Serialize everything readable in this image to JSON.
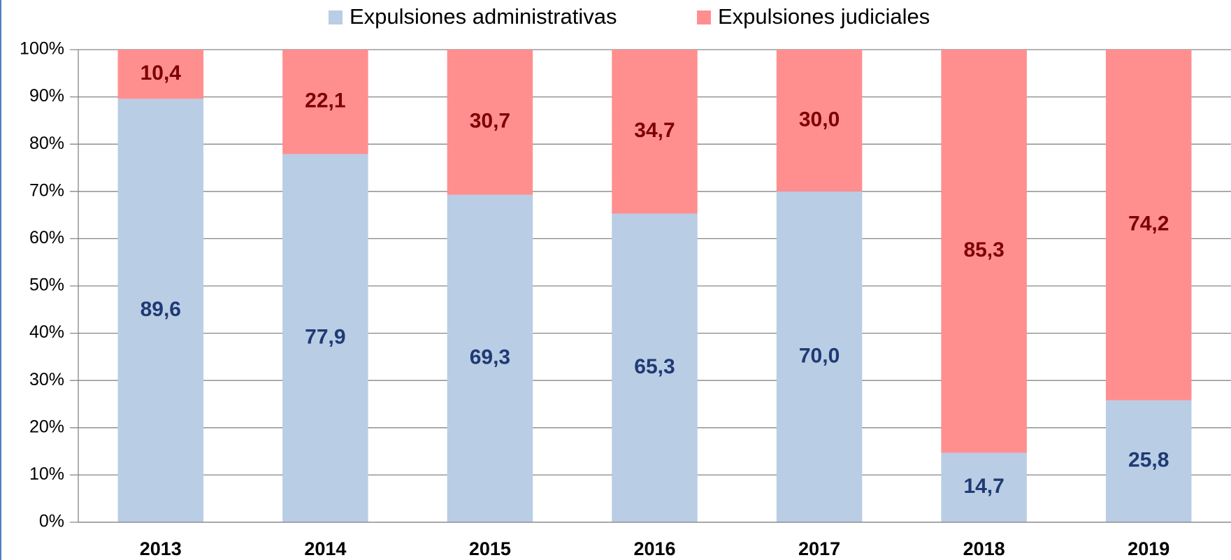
{
  "chart_data": {
    "type": "bar",
    "stacked": true,
    "categories": [
      "2013",
      "2014",
      "2015",
      "2016",
      "2017",
      "2018",
      "2019"
    ],
    "series": [
      {
        "name": "Expulsiones administrativas",
        "color": "#b9cde5",
        "label_color": "#1f3a73",
        "values": [
          89.6,
          77.9,
          69.3,
          65.3,
          70.0,
          14.7,
          25.8
        ],
        "value_labels": [
          "89,6",
          "77,9",
          "69,3",
          "65,3",
          "70,0",
          "14,7",
          "25,8"
        ]
      },
      {
        "name": "Expulsiones judiciales",
        "color": "#ff8f8f",
        "label_color": "#7f0000",
        "values": [
          10.4,
          22.1,
          30.7,
          34.7,
          30.0,
          85.3,
          74.2
        ],
        "value_labels": [
          "10,4",
          "22,1",
          "30,7",
          "34,7",
          "30,0",
          "85,3",
          "74,2"
        ]
      }
    ],
    "ylim": [
      0,
      100
    ],
    "yticks": [
      {
        "value": 0,
        "label": "0%"
      },
      {
        "value": 10,
        "label": "10%"
      },
      {
        "value": 20,
        "label": "20%"
      },
      {
        "value": 30,
        "label": "30%"
      },
      {
        "value": 40,
        "label": "40%"
      },
      {
        "value": 50,
        "label": "50%"
      },
      {
        "value": 60,
        "label": "60%"
      },
      {
        "value": 70,
        "label": "70%"
      },
      {
        "value": 80,
        "label": "80%"
      },
      {
        "value": 90,
        "label": "90%"
      },
      {
        "value": 100,
        "label": "100%"
      }
    ],
    "grid": true,
    "legend": "top"
  }
}
